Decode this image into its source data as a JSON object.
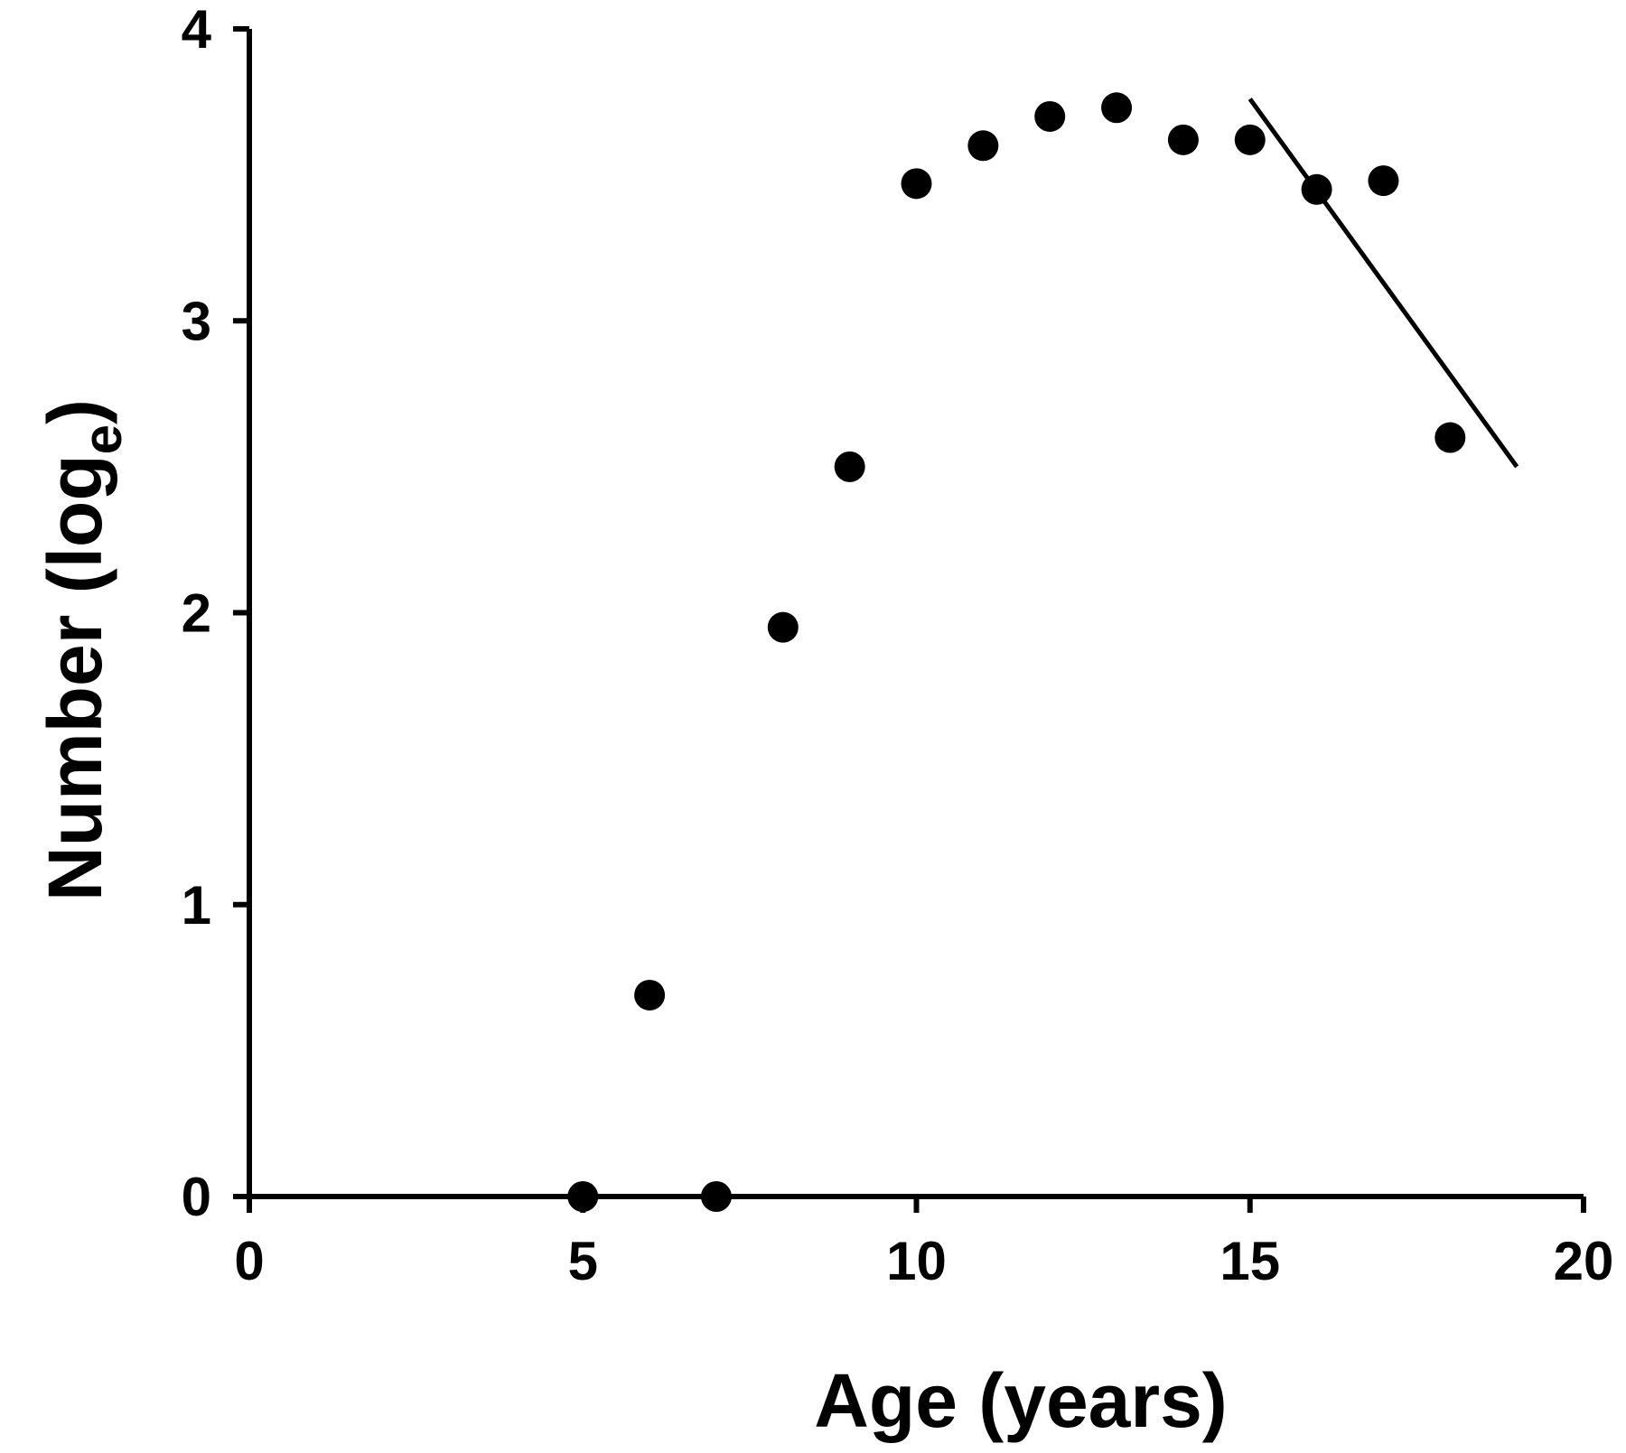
{
  "chart_data": {
    "type": "scatter",
    "title": "",
    "xlabel": "Age (years)",
    "ylabel": "Number (log",
    "ylabel_subscript": "e",
    "ylabel_close": ")",
    "xlim": [
      0,
      20
    ],
    "ylim": [
      0,
      4
    ],
    "xticks": [
      0,
      5,
      10,
      15,
      20
    ],
    "xtick_labels": [
      "0",
      "5",
      "10",
      "15",
      "20"
    ],
    "yticks": [
      0,
      1,
      2,
      3,
      4
    ],
    "ytick_labels": [
      "0",
      "1",
      "2",
      "3",
      "4"
    ],
    "grid": false,
    "legend": "none",
    "points": [
      {
        "x": 5,
        "y": 0
      },
      {
        "x": 6,
        "y": 0.69
      },
      {
        "x": 7,
        "y": 0
      },
      {
        "x": 8,
        "y": 1.95
      },
      {
        "x": 9,
        "y": 2.5
      },
      {
        "x": 10,
        "y": 3.47
      },
      {
        "x": 11,
        "y": 3.6
      },
      {
        "x": 12,
        "y": 3.7
      },
      {
        "x": 13,
        "y": 3.73
      },
      {
        "x": 14,
        "y": 3.62
      },
      {
        "x": 15,
        "y": 3.62
      },
      {
        "x": 16,
        "y": 3.45
      },
      {
        "x": 17,
        "y": 3.48
      },
      {
        "x": 18,
        "y": 2.6
      }
    ],
    "fit_line": {
      "x": [
        15,
        19
      ],
      "y": [
        3.76,
        2.5
      ]
    },
    "colors": {
      "marker": "#000000",
      "line": "#000000",
      "axis": "#000000"
    }
  }
}
